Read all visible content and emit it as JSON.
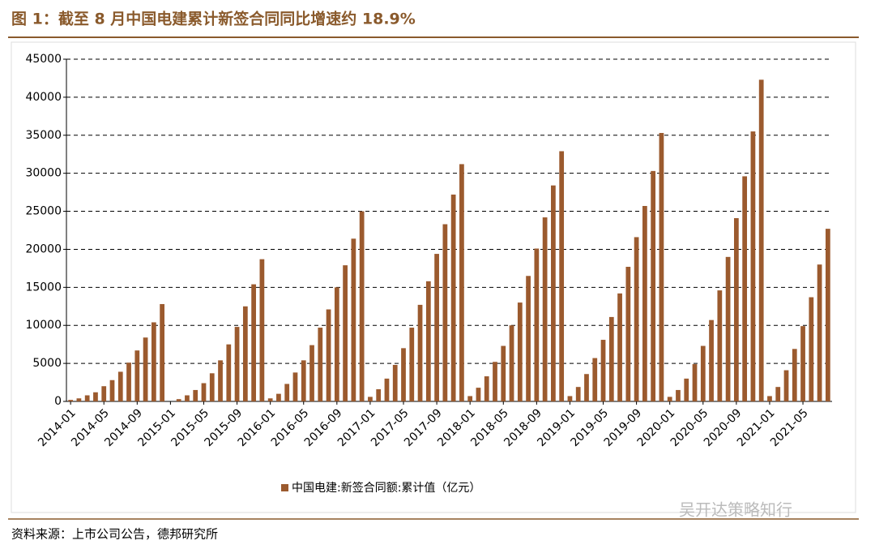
{
  "chart_data": {
    "type": "bar",
    "title": "图 1：截至 8 月中国电建累计新签合同同比增速约 18.9%",
    "legend_label": "中国电建:新签合同额:累计值（亿元）",
    "source": "资料来源：上市公司公告，德邦研究所",
    "watermark": "吴开达策略知行",
    "color": "#9b5a2e",
    "grid": true,
    "ylim": [
      0,
      45000
    ],
    "yticks": [
      0,
      5000,
      10000,
      15000,
      20000,
      25000,
      30000,
      35000,
      40000,
      45000
    ],
    "categories": [
      "2014-01",
      null,
      null,
      null,
      "2014-05",
      null,
      null,
      null,
      "2014-09",
      null,
      null,
      null,
      "2015-01",
      null,
      null,
      null,
      "2015-05",
      null,
      null,
      null,
      "2015-09",
      null,
      null,
      null,
      "2016-01",
      null,
      null,
      null,
      "2016-05",
      null,
      null,
      null,
      "2016-09",
      null,
      null,
      null,
      "2017-01",
      null,
      null,
      null,
      "2017-05",
      null,
      null,
      null,
      "2017-09",
      null,
      null,
      null,
      "2018-01",
      null,
      null,
      null,
      "2018-05",
      null,
      null,
      null,
      "2018-09",
      null,
      null,
      null,
      "2019-01",
      null,
      null,
      null,
      "2019-05",
      null,
      null,
      null,
      "2019-09",
      null,
      null,
      null,
      "2020-01",
      null,
      null,
      null,
      "2020-05",
      null,
      null,
      null,
      "2020-09",
      null,
      null,
      null,
      "2021-01",
      null,
      null,
      null,
      "2021-05",
      null,
      null,
      null
    ],
    "values": [
      200,
      400,
      800,
      1200,
      2000,
      2800,
      3900,
      5100,
      6700,
      8400,
      10400,
      12800,
      null,
      300,
      800,
      1500,
      2400,
      3700,
      5400,
      7500,
      9800,
      12500,
      15400,
      18700,
      400,
      1000,
      2300,
      3800,
      5400,
      7400,
      9700,
      12100,
      15000,
      17900,
      21400,
      25000,
      600,
      1600,
      3000,
      4800,
      7000,
      9700,
      12700,
      15800,
      19400,
      23300,
      27200,
      31200,
      700,
      1800,
      3300,
      5200,
      7300,
      10000,
      13000,
      16500,
      20100,
      24200,
      28400,
      32900,
      700,
      1900,
      3600,
      5700,
      8100,
      11100,
      14200,
      17700,
      21600,
      25700,
      30300,
      35300,
      600,
      1500,
      3000,
      4900,
      7300,
      10700,
      14600,
      19000,
      24100,
      29600,
      35500,
      42300,
      700,
      1900,
      4100,
      6900,
      9900,
      13700,
      18000,
      22700
    ]
  }
}
